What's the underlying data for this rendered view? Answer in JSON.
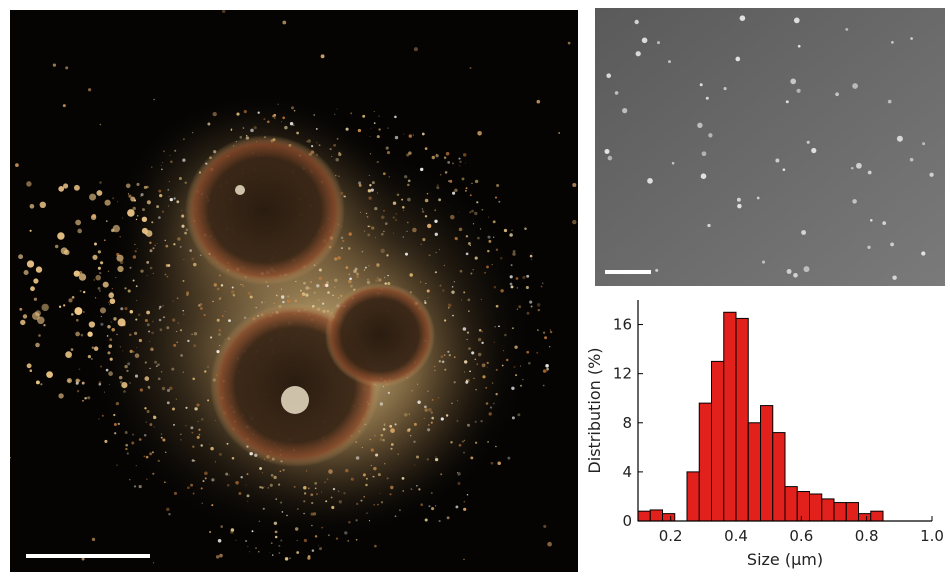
{
  "images": {
    "left_image": {
      "description_icon": "darkfield-microscopy-image",
      "has_scale_bar": true
    },
    "right_top_image": {
      "description_icon": "sem-image",
      "has_scale_bar": true
    }
  },
  "colors": {
    "bar_fill": "#e3211c",
    "bar_stroke": "#000000",
    "dark_bg": "#050403",
    "sem_bg": "#6b6b6b",
    "glow": "#f2d58f",
    "scale_bar": "#ffffff"
  },
  "chart_data": {
    "type": "bar",
    "title": "",
    "xlabel": "Size (μm)",
    "ylabel": "Distribution (%)",
    "xlim": [
      0.1,
      1.0
    ],
    "ylim": [
      0,
      18
    ],
    "xticks": [
      "0.2",
      "0.4",
      "0.6",
      "0.8",
      "1.0"
    ],
    "xtick_values": [
      0.2,
      0.4,
      0.6,
      0.8,
      1.0
    ],
    "yticks": [
      "0",
      "4",
      "8",
      "12",
      "16"
    ],
    "ytick_values": [
      0,
      4,
      8,
      12,
      16
    ],
    "bin_width": 0.0375,
    "bins": [
      {
        "x": 0.1,
        "value": 0.8
      },
      {
        "x": 0.1375,
        "value": 0.9
      },
      {
        "x": 0.175,
        "value": 0.6
      },
      {
        "x": 0.2125,
        "value": 0.0
      },
      {
        "x": 0.25,
        "value": 4.0
      },
      {
        "x": 0.2875,
        "value": 9.6
      },
      {
        "x": 0.325,
        "value": 13.0
      },
      {
        "x": 0.3625,
        "value": 17.0
      },
      {
        "x": 0.4,
        "value": 16.5
      },
      {
        "x": 0.4375,
        "value": 8.0
      },
      {
        "x": 0.475,
        "value": 9.4
      },
      {
        "x": 0.5125,
        "value": 7.2
      },
      {
        "x": 0.55,
        "value": 2.8
      },
      {
        "x": 0.5875,
        "value": 2.4
      },
      {
        "x": 0.625,
        "value": 2.2
      },
      {
        "x": 0.6625,
        "value": 1.8
      },
      {
        "x": 0.7,
        "value": 1.5
      },
      {
        "x": 0.7375,
        "value": 1.5
      },
      {
        "x": 0.775,
        "value": 0.6
      },
      {
        "x": 0.8125,
        "value": 0.8
      }
    ]
  }
}
